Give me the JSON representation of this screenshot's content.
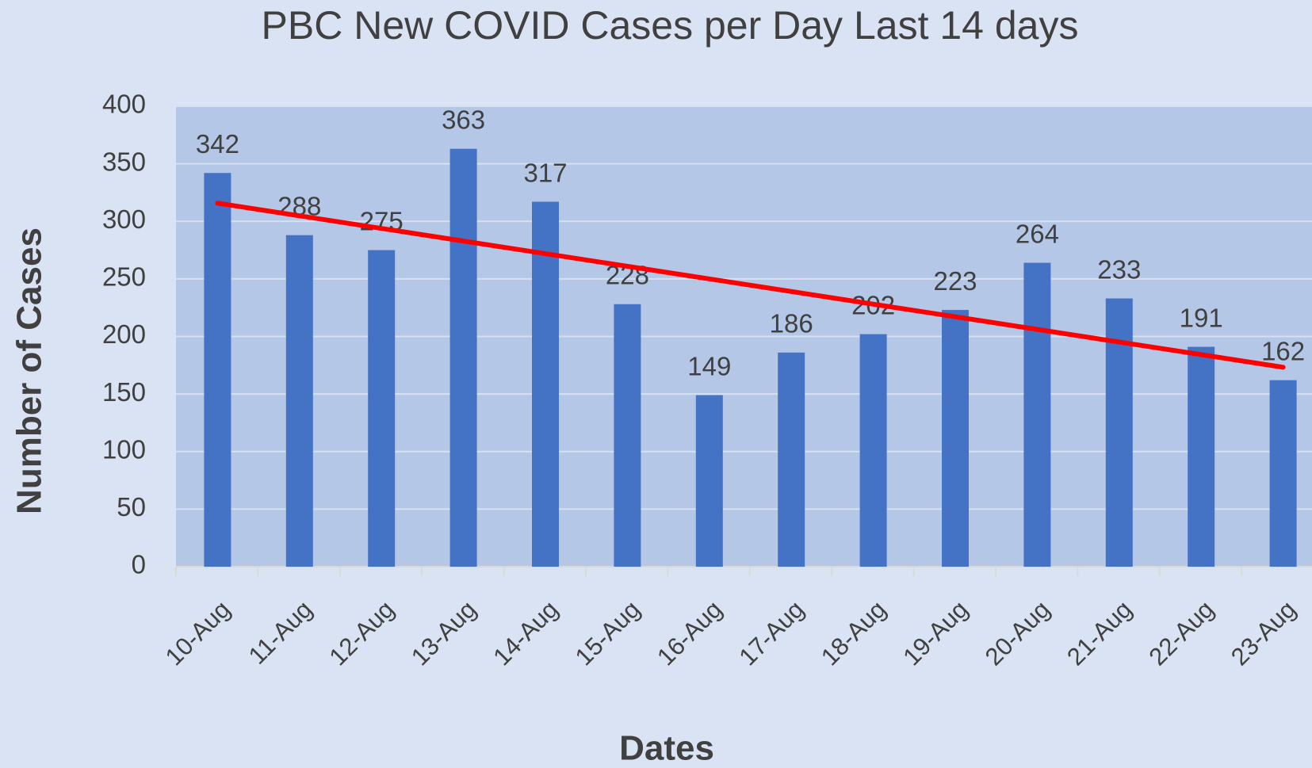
{
  "chart_data": {
    "type": "bar",
    "title": "PBC New COVID  Cases per Day Last 14 days",
    "x_label": "Dates",
    "y_label": "Number of Cases",
    "categories": [
      "10-Aug",
      "11-Aug",
      "12-Aug",
      "13-Aug",
      "14-Aug",
      "15-Aug",
      "16-Aug",
      "17-Aug",
      "18-Aug",
      "19-Aug",
      "20-Aug",
      "21-Aug",
      "22-Aug",
      "23-Aug"
    ],
    "values": [
      342,
      288,
      275,
      363,
      317,
      228,
      149,
      186,
      202,
      223,
      264,
      233,
      191,
      162
    ],
    "color": "#4472c4",
    "trendline": {
      "type": "linear",
      "color": "#ff0000"
    },
    "ylim": [
      0,
      400
    ],
    "yticks": [
      0,
      50,
      100,
      150,
      200,
      250,
      300,
      350,
      400
    ],
    "grid": true
  }
}
